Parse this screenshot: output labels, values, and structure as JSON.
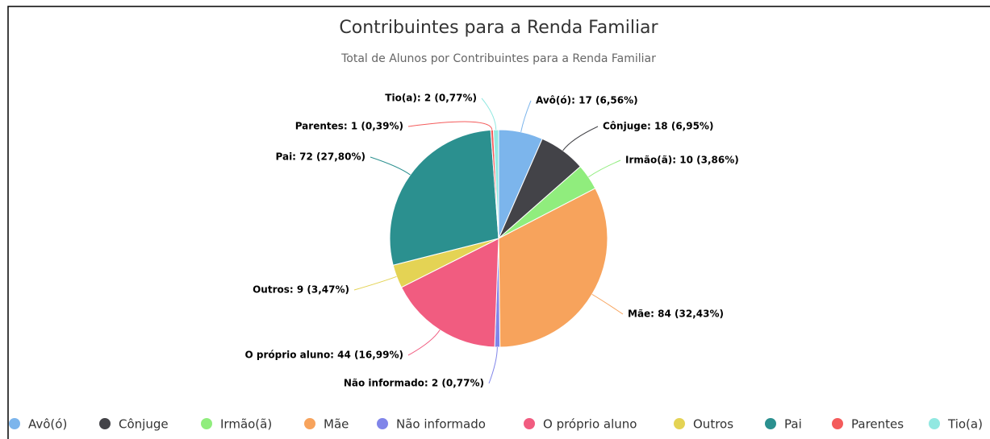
{
  "chart_data": {
    "type": "pie",
    "title": "Contribuintes para a Renda Familiar",
    "subtitle": "Total de Alunos por Contribuintes para a Renda Familiar",
    "categories": [
      "Avô(ó)",
      "Cônjuge",
      "Irmão(ã)",
      "Mãe",
      "Não informado",
      "O próprio aluno",
      "Outros",
      "Pai",
      "Parentes",
      "Tio(a)"
    ],
    "values": [
      17,
      18,
      10,
      84,
      2,
      44,
      9,
      72,
      1,
      2
    ],
    "value_labels": [
      "Avô(ó): 17 (6,56%)",
      "Cônjuge: 18 (6,95%)",
      "Irmão(ã): 10 (3,86%)",
      "Mãe: 84 (32,43%)",
      "Não informado: 2 (0,77%)",
      "O próprio aluno: 44 (16,99%)",
      "Outros: 9 (3,47%)",
      "Pai: 72 (27,80%)",
      "Parentes: 1 (0,39%)",
      "Tio(a): 2 (0,77%)"
    ],
    "colors": [
      "#7cb5ec",
      "#434348",
      "#90ed7d",
      "#f7a35c",
      "#8085e9",
      "#f15c80",
      "#e4d354",
      "#2b908f",
      "#f45b5b",
      "#91e8e1"
    ],
    "legend": "bottom"
  }
}
